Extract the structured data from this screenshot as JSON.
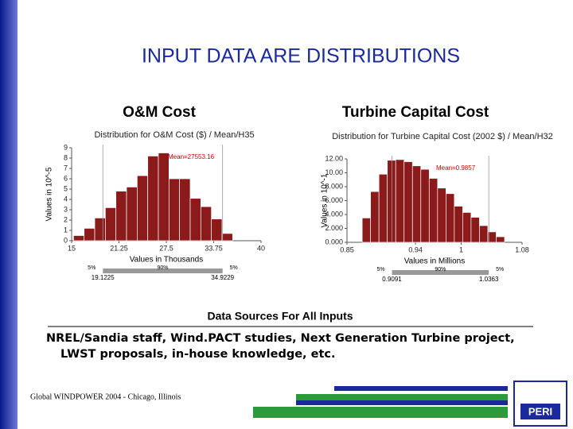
{
  "title": "INPUT DATA ARE DISTRIBUTIONS",
  "chart_data": [
    {
      "type": "histogram",
      "heading": "O&M Cost",
      "title": "Distribution for O&M Cost ($) / Mean/H35",
      "xlabel": "Values in Thousands",
      "ylabel": "Values in 10^-5",
      "annotation": "Mean=27553.16",
      "bins": [
        15.25,
        16.65,
        18.05,
        19.45,
        20.85,
        22.25,
        23.65,
        25.05,
        26.45,
        27.85,
        29.25,
        30.65,
        32.05,
        33.45,
        34.85,
        36.25
      ],
      "values": [
        0.5,
        1.2,
        2.2,
        3.2,
        4.8,
        5.2,
        6.3,
        8.2,
        8.5,
        6.0,
        6.0,
        4.1,
        3.3,
        2.1,
        0.7
      ],
      "color": "#8b1a1a",
      "xlim": [
        15,
        40
      ],
      "xticks": [
        15,
        21.25,
        27.5,
        33.75,
        40
      ],
      "ylim": [
        0,
        9
      ],
      "yticks": [
        0,
        1,
        2,
        3,
        4,
        5,
        6,
        7,
        8,
        9
      ],
      "interval": {
        "left_label": "5%",
        "middle_label": "90%",
        "right_label": "5%",
        "low": 19.1225,
        "high": 34.9229
      }
    },
    {
      "type": "histogram",
      "heading": "Turbine Capital Cost",
      "title": "Distribution for Turbine Capital Cost (2002 $) / Mean/H32",
      "xlabel": "Values in Millions",
      "ylabel": "Values in 10^-1",
      "annotation": "Mean=0.9857",
      "bins": [
        0.87,
        0.881,
        0.892,
        0.903,
        0.914,
        0.925,
        0.936,
        0.947,
        0.958,
        0.969,
        0.98,
        0.991,
        1.002,
        1.013,
        1.024,
        1.035,
        1.046,
        1.057
      ],
      "values": [
        3.5,
        7.3,
        9.8,
        11.8,
        11.9,
        11.6,
        11.0,
        10.5,
        9.2,
        7.8,
        7.0,
        5.2,
        4.3,
        3.6,
        2.4,
        1.5,
        0.8
      ],
      "color": "#8b1a1a",
      "xlim": [
        0.85,
        1.08
      ],
      "xticks": [
        0.85,
        0.94,
        1,
        1.08
      ],
      "ylim": [
        0,
        12
      ],
      "yticks": [
        {
          "value": 0,
          "label": "0.000"
        },
        {
          "value": 2,
          "label": "2.000"
        },
        {
          "value": 4,
          "label": "4.000"
        },
        {
          "value": 6,
          "label": "6.000"
        },
        {
          "value": 8,
          "label": "8.000"
        },
        {
          "value": 10,
          "label": "10.00"
        },
        {
          "value": 12,
          "label": "12.00"
        }
      ],
      "interval": {
        "left_label": "5%",
        "middle_label": "90%",
        "right_label": "5%",
        "low": 0.9091,
        "high": 1.0363
      }
    }
  ],
  "sources": {
    "heading": "Data Sources For All Inputs",
    "text": "NREL/Sandia staff, Wind.PACT studies, Next Generation Turbine project, LWST proposals, in-house knowledge, etc."
  },
  "footer": "Global WINDPOWER 2004 - Chicago, Illinois",
  "logo": "PERI"
}
